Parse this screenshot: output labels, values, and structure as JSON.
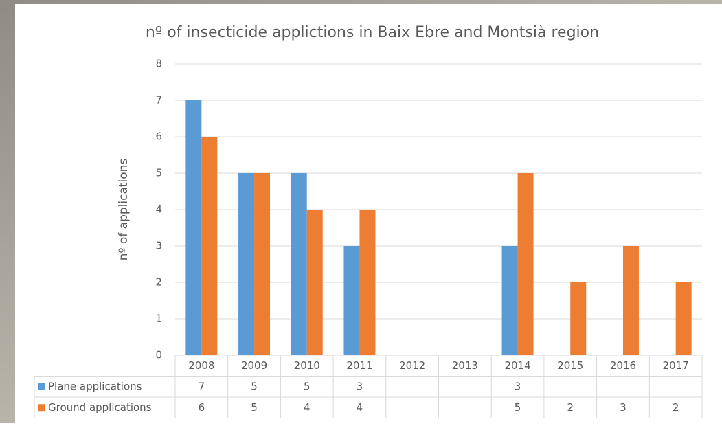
{
  "chart_data": {
    "type": "bar",
    "title": "nº of insecticide applictions in Baix Ebre and Montsià region",
    "y_label": "nº of applications",
    "categories": [
      "2008",
      "2009",
      "2010",
      "2011",
      "2012",
      "2013",
      "2014",
      "2015",
      "2016",
      "2017"
    ],
    "series": [
      {
        "name": "Plane applications",
        "color": "#5b9bd5",
        "values": [
          7,
          5,
          5,
          3,
          null,
          null,
          3,
          null,
          null,
          null
        ]
      },
      {
        "name": "Ground applications",
        "color": "#ed7d31",
        "values": [
          6,
          5,
          4,
          4,
          null,
          null,
          5,
          2,
          3,
          2
        ]
      }
    ],
    "ylim": [
      0,
      8
    ],
    "yticks": [
      0,
      1,
      2,
      3,
      4,
      5,
      6,
      7,
      8
    ],
    "grid": true,
    "data_table": true
  }
}
